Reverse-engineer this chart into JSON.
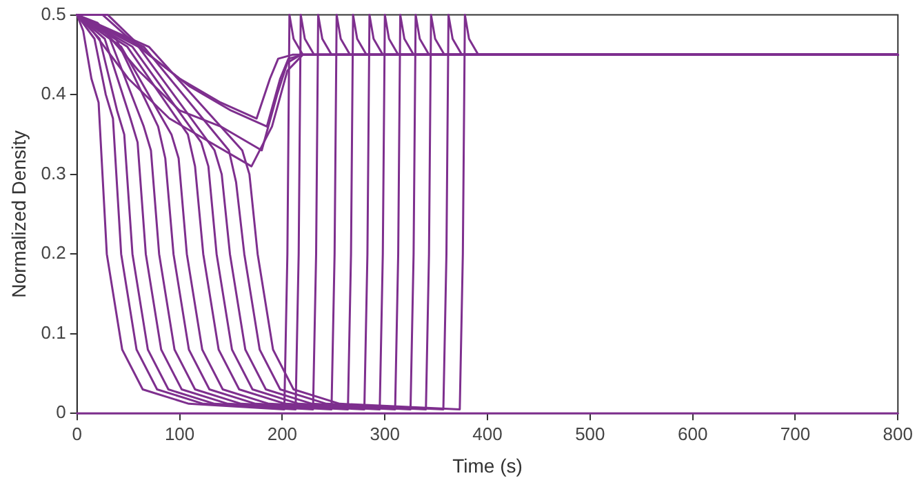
{
  "chart_data": {
    "type": "line",
    "xlabel": "Time (s)",
    "ylabel": "Normalized Density",
    "xlim": [
      0,
      800
    ],
    "xticks": [
      0,
      100,
      200,
      300,
      400,
      500,
      600,
      700,
      800
    ],
    "ylim": [
      0,
      0.5
    ],
    "yticks": [
      0,
      0.1,
      0.2,
      0.3,
      0.4,
      0.5
    ],
    "grid": false,
    "legend": false,
    "marker": "none",
    "line_style": "solid",
    "series": [
      {
        "color": "#7e2f8e",
        "x": [
          0,
          6,
          14,
          21,
          29,
          44,
          64,
          109,
          202,
          205,
          207,
          211,
          220,
          800
        ],
        "values": [
          0.5,
          0.48,
          0.42,
          0.39,
          0.2,
          0.08,
          0.03,
          0.012,
          0.005,
          0.2,
          0.5,
          0.47,
          0.45,
          0.45
        ]
      },
      {
        "color": "#7e2f8e",
        "x": [
          0,
          17,
          28,
          35,
          43,
          58,
          78,
          123,
          213,
          216,
          218,
          222,
          231,
          800
        ],
        "values": [
          0.5,
          0.47,
          0.4,
          0.37,
          0.2,
          0.08,
          0.03,
          0.012,
          0.005,
          0.2,
          0.5,
          0.47,
          0.45,
          0.45
        ]
      },
      {
        "color": "#7e2f8e",
        "x": [
          0,
          22,
          39,
          46,
          54,
          69,
          89,
          134,
          230,
          233,
          235,
          239,
          248,
          800
        ],
        "values": [
          0.5,
          0.47,
          0.38,
          0.35,
          0.2,
          0.08,
          0.03,
          0.012,
          0.005,
          0.2,
          0.5,
          0.47,
          0.45,
          0.45
        ]
      },
      {
        "color": "#7e2f8e",
        "x": [
          0,
          27,
          52,
          59,
          67,
          82,
          102,
          147,
          248,
          251,
          253,
          257,
          266,
          800
        ],
        "values": [
          0.5,
          0.47,
          0.37,
          0.34,
          0.2,
          0.08,
          0.03,
          0.012,
          0.005,
          0.2,
          0.5,
          0.47,
          0.45,
          0.45
        ]
      },
      {
        "color": "#7e2f8e",
        "x": [
          0,
          32,
          65,
          72,
          80,
          95,
          115,
          160,
          264,
          267,
          269,
          273,
          282,
          800
        ],
        "values": [
          0.5,
          0.47,
          0.36,
          0.33,
          0.2,
          0.08,
          0.03,
          0.012,
          0.005,
          0.2,
          0.5,
          0.47,
          0.45,
          0.45
        ]
      },
      {
        "color": "#7e2f8e",
        "x": [
          0,
          38,
          79,
          86,
          94,
          109,
          129,
          174,
          280,
          283,
          285,
          289,
          298,
          800
        ],
        "values": [
          0.5,
          0.47,
          0.36,
          0.32,
          0.2,
          0.08,
          0.03,
          0.012,
          0.005,
          0.2,
          0.5,
          0.47,
          0.45,
          0.45
        ]
      },
      {
        "color": "#7e2f8e",
        "x": [
          0,
          43,
          92,
          99,
          107,
          122,
          142,
          187,
          295,
          298,
          300,
          304,
          313,
          800
        ],
        "values": [
          0.5,
          0.46,
          0.35,
          0.32,
          0.2,
          0.08,
          0.03,
          0.012,
          0.005,
          0.2,
          0.5,
          0.47,
          0.45,
          0.45
        ]
      },
      {
        "color": "#7e2f8e",
        "x": [
          0,
          49,
          108,
          115,
          123,
          138,
          158,
          203,
          310,
          313,
          315,
          319,
          328,
          800
        ],
        "values": [
          0.5,
          0.46,
          0.35,
          0.31,
          0.2,
          0.08,
          0.03,
          0.012,
          0.005,
          0.2,
          0.5,
          0.47,
          0.45,
          0.45
        ]
      },
      {
        "color": "#7e2f8e",
        "x": [
          0,
          54,
          121,
          128,
          136,
          151,
          171,
          216,
          325,
          328,
          330,
          334,
          343,
          800
        ],
        "values": [
          0.5,
          0.46,
          0.34,
          0.31,
          0.2,
          0.08,
          0.03,
          0.012,
          0.005,
          0.2,
          0.5,
          0.47,
          0.45,
          0.45
        ]
      },
      {
        "color": "#7e2f8e",
        "x": [
          0,
          60,
          134,
          141,
          149,
          164,
          184,
          229,
          340,
          343,
          345,
          349,
          358,
          800
        ],
        "values": [
          0.5,
          0.46,
          0.33,
          0.3,
          0.2,
          0.08,
          0.03,
          0.012,
          0.005,
          0.2,
          0.5,
          0.47,
          0.45,
          0.45
        ]
      },
      {
        "color": "#7e2f8e",
        "x": [
          0,
          65,
          148,
          155,
          163,
          178,
          198,
          243,
          357,
          360,
          362,
          366,
          375,
          800
        ],
        "values": [
          0.5,
          0.46,
          0.33,
          0.29,
          0.2,
          0.08,
          0.03,
          0.012,
          0.005,
          0.2,
          0.5,
          0.47,
          0.45,
          0.45
        ]
      },
      {
        "color": "#7e2f8e",
        "x": [
          0,
          70,
          161,
          168,
          176,
          191,
          211,
          256,
          373,
          376,
          378,
          382,
          391,
          800
        ],
        "values": [
          0.5,
          0.46,
          0.33,
          0.3,
          0.2,
          0.08,
          0.03,
          0.012,
          0.005,
          0.2,
          0.5,
          0.47,
          0.45,
          0.45
        ]
      },
      {
        "color": "#7e2f8e",
        "x": [
          0,
          25,
          60,
          100,
          140,
          175,
          188,
          196,
          210,
          800
        ],
        "values": [
          0.5,
          0.5,
          0.46,
          0.42,
          0.39,
          0.37,
          0.42,
          0.445,
          0.45,
          0.45
        ]
      },
      {
        "color": "#7e2f8e",
        "x": [
          0,
          30,
          70,
          110,
          150,
          185,
          198,
          206,
          220,
          800
        ],
        "values": [
          0.5,
          0.5,
          0.45,
          0.41,
          0.38,
          0.36,
          0.42,
          0.445,
          0.45,
          0.45
        ]
      },
      {
        "color": "#7e2f8e",
        "x": [
          0,
          20,
          60,
          100,
          140,
          180,
          195,
          205,
          218,
          800
        ],
        "values": [
          0.5,
          0.49,
          0.43,
          0.38,
          0.36,
          0.33,
          0.4,
          0.44,
          0.45,
          0.45
        ]
      },
      {
        "color": "#7e2f8e",
        "x": [
          0,
          15,
          50,
          90,
          130,
          170,
          190,
          205,
          220,
          800
        ],
        "values": [
          0.5,
          0.48,
          0.42,
          0.37,
          0.34,
          0.31,
          0.36,
          0.43,
          0.45,
          0.45
        ]
      },
      {
        "color": "#7e2f8e",
        "x": [
          0,
          800
        ],
        "values": [
          0,
          0
        ]
      }
    ]
  }
}
